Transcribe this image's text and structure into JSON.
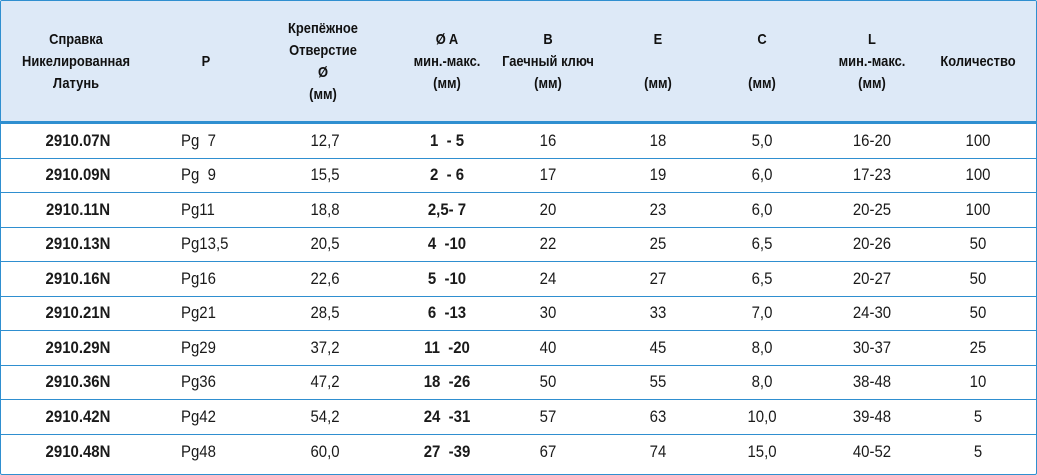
{
  "table": {
    "headers": [
      {
        "key": "ref",
        "label": "Справка\nНикелированная\nЛатунь"
      },
      {
        "key": "p",
        "label": "P"
      },
      {
        "key": "hole",
        "label": "Крепёжное\nОтверстие\nØ\n(мм)"
      },
      {
        "key": "a",
        "label": "Ø A\nмин.-макс.\n(мм)"
      },
      {
        "key": "b",
        "label": "B\nГаечный ключ\n(мм)"
      },
      {
        "key": "e",
        "label": "E\n\n(мм)"
      },
      {
        "key": "c",
        "label": "C\n\n(мм)"
      },
      {
        "key": "l",
        "label": "L\nмин.-макс.\n(мм)"
      },
      {
        "key": "qty",
        "label": "Количество"
      }
    ],
    "rows": [
      [
        "2910.07N",
        "Pg  7",
        "12,7",
        "1  - 5",
        "16",
        "18",
        "5,0",
        "16-20",
        "100"
      ],
      [
        "2910.09N",
        "Pg  9",
        "15,5",
        "2  - 6",
        "17",
        "19",
        "6,0",
        "17-23",
        "100"
      ],
      [
        "2910.11N",
        "Pg11",
        "18,8",
        "2,5- 7",
        "20",
        "23",
        "6,0",
        "20-25",
        "100"
      ],
      [
        "2910.13N",
        "Pg13,5",
        "20,5",
        "4  -10",
        "22",
        "25",
        "6,5",
        "20-26",
        "50"
      ],
      [
        "2910.16N",
        "Pg16",
        "22,6",
        "5  -10",
        "24",
        "27",
        "6,5",
        "20-27",
        "50"
      ],
      [
        "2910.21N",
        "Pg21",
        "28,5",
        "6  -13",
        "30",
        "33",
        "7,0",
        "24-30",
        "50"
      ],
      [
        "2910.29N",
        "Pg29",
        "37,2",
        "11  -20",
        "40",
        "45",
        "8,0",
        "30-37",
        "25"
      ],
      [
        "2910.36N",
        "Pg36",
        "47,2",
        "18  -26",
        "50",
        "55",
        "8,0",
        "38-48",
        "10"
      ],
      [
        "2910.42N",
        "Pg42",
        "54,2",
        "24  -31",
        "57",
        "63",
        "10,0",
        "39-48",
        "5"
      ],
      [
        "2910.48N",
        "Pg48",
        "60,0",
        "27  -39",
        "67",
        "74",
        "15,0",
        "40-52",
        "5"
      ]
    ]
  },
  "colors": {
    "header_bg": "#dde9f7",
    "rule": "#2f8fd0"
  }
}
